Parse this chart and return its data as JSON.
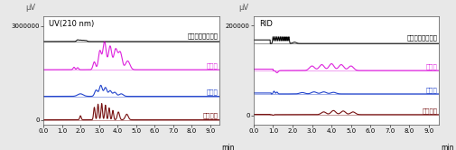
{
  "left_panel": {
    "title": "UV(210 nm)",
    "ylabel": "μV",
    "xlabel": "min",
    "ylim": [
      -150000,
      3300000
    ],
    "yticks": [
      0,
      3000000
    ],
    "ytick_labels": [
      "0",
      "3000000"
    ],
    "xlim": [
      0.0,
      9.5
    ],
    "xticks": [
      0.0,
      1.0,
      2.0,
      3.0,
      4.0,
      5.0,
      6.0,
      7.0,
      8.0,
      9.0
    ],
    "colors": {
      "coconut": "#000000",
      "kome": "#dd22dd",
      "butter": "#2244cc",
      "natane": "#771111"
    },
    "labels": {
      "coconut": "ココナッツオイル",
      "kome": "こめ油",
      "butter": "バター",
      "natane": "なたね油"
    },
    "offsets": {
      "coconut": 2500000,
      "kome": 1600000,
      "butter": 750000,
      "natane": 0
    }
  },
  "right_panel": {
    "title": "RID",
    "ylabel": "μV",
    "xlabel": "min",
    "ylim": [
      -20000,
      220000
    ],
    "yticks": [
      0,
      200000
    ],
    "ytick_labels": [
      "0",
      "200000"
    ],
    "xlim": [
      0.0,
      9.5
    ],
    "xticks": [
      0.0,
      1.0,
      2.0,
      3.0,
      4.0,
      5.0,
      6.0,
      7.0,
      8.0,
      9.0
    ],
    "colors": {
      "coconut": "#000000",
      "kome": "#dd22dd",
      "butter": "#2244cc",
      "natane": "#771111"
    },
    "labels": {
      "coconut": "ココナッツオイル",
      "kome": "こめ油",
      "butter": "バター",
      "natane": "なたね油"
    },
    "offsets": {
      "coconut": 160000,
      "kome": 100000,
      "butter": 48000,
      "natane": 2000
    }
  },
  "background_color": "#e8e8e8",
  "panel_bg": "#ffffff"
}
